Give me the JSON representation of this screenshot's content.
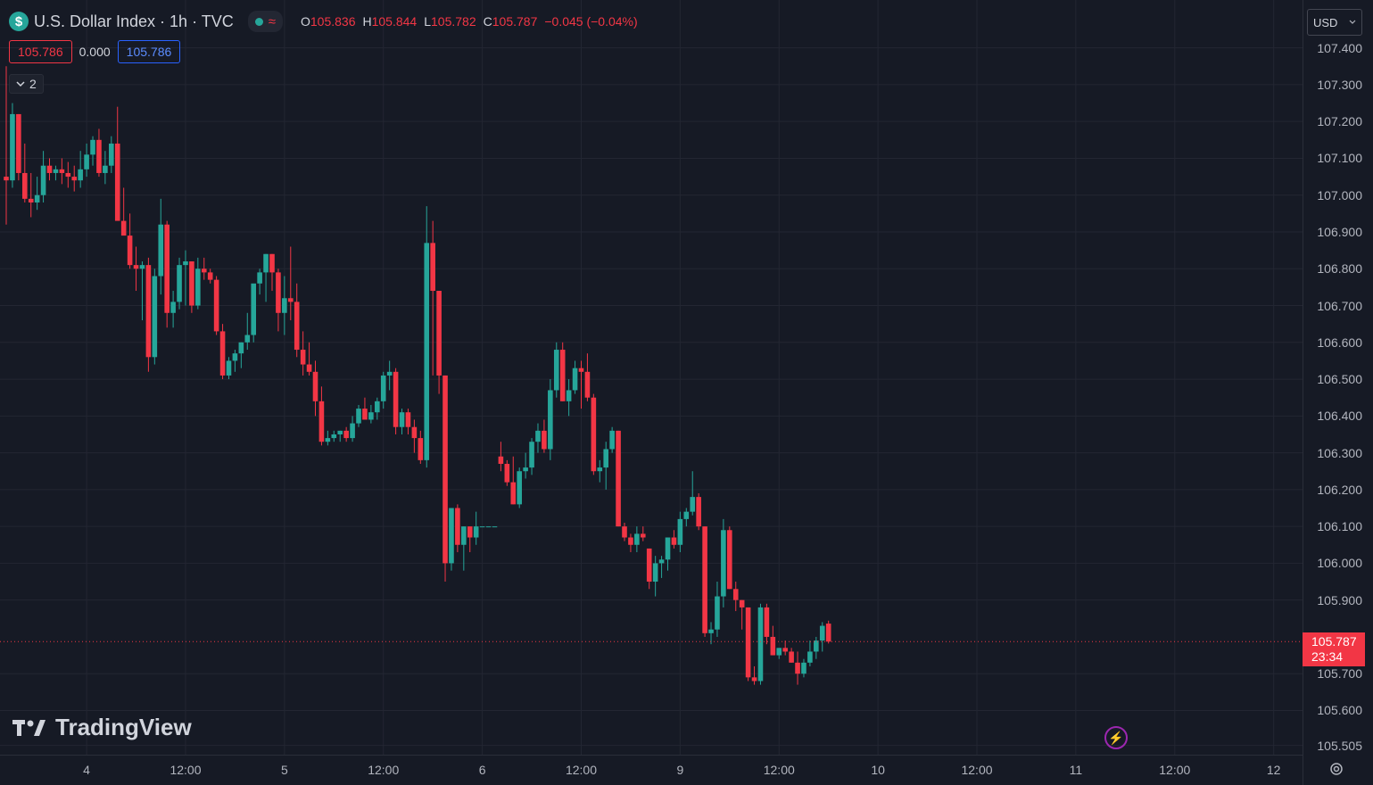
{
  "header": {
    "symbol_icon": "$",
    "title": "U.S. Dollar Index · 1h · TVC",
    "market_status_icon": "wave-icon",
    "ohlc": {
      "o_label": "O",
      "o_value": "105.836",
      "h_label": "H",
      "h_value": "105.844",
      "l_label": "L",
      "l_value": "105.782",
      "c_label": "C",
      "c_value": "105.787",
      "change": "−0.045 (−0.04%)"
    },
    "sell_price": "105.786",
    "spread": "0.000",
    "buy_price": "105.786",
    "indicators_toggle": "2"
  },
  "logo_text": "TradingView",
  "currency": "USD",
  "current_price": {
    "value": "105.787",
    "countdown": "23:34"
  },
  "colors": {
    "up": "#26a69a",
    "down": "#f23645",
    "background": "#161a25",
    "grid": "#232632"
  },
  "chart_data": {
    "type": "candlestick",
    "title": "U.S. Dollar Index · 1h · TVC",
    "ylim": [
      105.48,
      107.53
    ],
    "grid": true,
    "y_ticks": [
      "107.400",
      "107.300",
      "107.200",
      "107.100",
      "107.000",
      "106.900",
      "106.800",
      "106.700",
      "106.600",
      "106.500",
      "106.400",
      "106.300",
      "106.200",
      "106.100",
      "106.000",
      "105.900",
      "105.700",
      "105.600",
      "105.505"
    ],
    "x_ticks": [
      {
        "label": "4",
        "bar": 13
      },
      {
        "label": "12:00",
        "bar": 29
      },
      {
        "label": "5",
        "bar": 45
      },
      {
        "label": "12:00",
        "bar": 61
      },
      {
        "label": "6",
        "bar": 77
      },
      {
        "label": "12:00",
        "bar": 93
      },
      {
        "label": "9",
        "bar": 109
      },
      {
        "label": "12:00",
        "bar": 125
      },
      {
        "label": "10",
        "bar": 141
      },
      {
        "label": "12:00",
        "bar": 157
      },
      {
        "label": "11",
        "bar": 173
      },
      {
        "label": "12:00",
        "bar": 189
      },
      {
        "label": "12",
        "bar": 205
      }
    ],
    "bars": [
      [
        107.05,
        107.35,
        106.92,
        107.04
      ],
      [
        107.04,
        107.25,
        107.02,
        107.22
      ],
      [
        107.22,
        107.22,
        107.04,
        107.06
      ],
      [
        107.06,
        107.14,
        106.98,
        106.99
      ],
      [
        106.99,
        107.06,
        106.94,
        106.98
      ],
      [
        106.98,
        107.05,
        106.96,
        107.0
      ],
      [
        107.0,
        107.12,
        106.98,
        107.08
      ],
      [
        107.08,
        107.1,
        107.04,
        107.06
      ],
      [
        107.06,
        107.08,
        107.04,
        107.07
      ],
      [
        107.07,
        107.1,
        107.03,
        107.06
      ],
      [
        107.06,
        107.09,
        107.02,
        107.05
      ],
      [
        107.05,
        107.08,
        107.01,
        107.04
      ],
      [
        107.04,
        107.12,
        107.02,
        107.07
      ],
      [
        107.07,
        107.14,
        107.05,
        107.11
      ],
      [
        107.11,
        107.16,
        107.08,
        107.15
      ],
      [
        107.15,
        107.18,
        107.05,
        107.06
      ],
      [
        107.06,
        107.12,
        107.03,
        107.08
      ],
      [
        107.08,
        107.16,
        107.06,
        107.14
      ],
      [
        107.14,
        107.24,
        107.08,
        106.93
      ],
      [
        106.93,
        107.02,
        106.9,
        106.89
      ],
      [
        106.89,
        106.95,
        106.8,
        106.81
      ],
      [
        106.81,
        106.86,
        106.74,
        106.8
      ],
      [
        106.8,
        106.82,
        106.66,
        106.81
      ],
      [
        106.81,
        106.83,
        106.52,
        106.56
      ],
      [
        106.56,
        106.8,
        106.54,
        106.78
      ],
      [
        106.78,
        106.99,
        106.73,
        106.92
      ],
      [
        106.92,
        106.93,
        106.64,
        106.68
      ],
      [
        106.68,
        106.74,
        106.64,
        106.71
      ],
      [
        106.71,
        106.83,
        106.69,
        106.81
      ],
      [
        106.81,
        106.85,
        106.7,
        106.82
      ],
      [
        106.82,
        106.82,
        106.68,
        106.7
      ],
      [
        106.7,
        106.83,
        106.69,
        106.8
      ],
      [
        106.8,
        106.83,
        106.77,
        106.79
      ],
      [
        106.79,
        106.8,
        106.76,
        106.77
      ],
      [
        106.77,
        106.78,
        106.62,
        106.63
      ],
      [
        106.63,
        106.65,
        106.5,
        106.51
      ],
      [
        106.51,
        106.56,
        106.5,
        106.55
      ],
      [
        106.55,
        106.58,
        106.52,
        106.57
      ],
      [
        106.57,
        106.6,
        106.53,
        106.6
      ],
      [
        106.6,
        106.68,
        106.58,
        106.62
      ],
      [
        106.62,
        106.74,
        106.6,
        106.76
      ],
      [
        106.76,
        106.8,
        106.73,
        106.79
      ],
      [
        106.79,
        106.84,
        106.71,
        106.84
      ],
      [
        106.84,
        106.84,
        106.74,
        106.79
      ],
      [
        106.79,
        106.8,
        106.63,
        106.68
      ],
      [
        106.68,
        106.78,
        106.62,
        106.72
      ],
      [
        106.72,
        106.86,
        106.66,
        106.71
      ],
      [
        106.71,
        106.76,
        106.56,
        106.58
      ],
      [
        106.58,
        106.63,
        106.51,
        106.54
      ],
      [
        106.54,
        106.6,
        106.51,
        106.52
      ],
      [
        106.52,
        106.55,
        106.4,
        106.44
      ],
      [
        106.44,
        106.48,
        106.32,
        106.33
      ],
      [
        106.33,
        106.36,
        106.32,
        106.34
      ],
      [
        106.34,
        106.36,
        106.33,
        106.35
      ],
      [
        106.35,
        106.36,
        106.33,
        106.36
      ],
      [
        106.36,
        106.37,
        106.33,
        106.34
      ],
      [
        106.34,
        106.4,
        106.33,
        106.38
      ],
      [
        106.38,
        106.43,
        106.37,
        106.42
      ],
      [
        106.42,
        106.45,
        106.4,
        106.39
      ],
      [
        106.39,
        106.43,
        106.38,
        106.41
      ],
      [
        106.41,
        106.45,
        106.39,
        106.44
      ],
      [
        106.44,
        106.52,
        106.42,
        106.51
      ],
      [
        106.51,
        106.55,
        106.47,
        106.52
      ],
      [
        106.52,
        106.53,
        106.35,
        106.37
      ],
      [
        106.37,
        106.42,
        106.35,
        106.41
      ],
      [
        106.41,
        106.42,
        106.35,
        106.37
      ],
      [
        106.37,
        106.39,
        106.3,
        106.34
      ],
      [
        106.34,
        106.36,
        106.27,
        106.28
      ],
      [
        106.28,
        106.97,
        106.26,
        106.87
      ],
      [
        106.87,
        106.93,
        106.51,
        106.74
      ],
      [
        106.74,
        106.74,
        106.46,
        106.51
      ],
      [
        106.51,
        106.51,
        105.95,
        106.0
      ],
      [
        106.0,
        106.15,
        105.98,
        106.15
      ],
      [
        106.15,
        106.16,
        106.03,
        106.05
      ],
      [
        106.05,
        106.1,
        105.98,
        106.1
      ],
      [
        106.1,
        106.1,
        106.03,
        106.07
      ],
      [
        106.07,
        106.14,
        106.05,
        106.1
      ],
      [
        106.1,
        106.1,
        106.1,
        106.1
      ],
      [
        106.1,
        106.1,
        106.1,
        106.1
      ],
      [
        106.1,
        106.1,
        106.1,
        106.1
      ],
      [
        106.29,
        106.33,
        106.25,
        106.27
      ],
      [
        106.27,
        106.28,
        106.21,
        106.22
      ],
      [
        106.22,
        106.29,
        106.16,
        106.16
      ],
      [
        106.16,
        106.26,
        106.15,
        106.25
      ],
      [
        106.25,
        106.3,
        106.23,
        106.26
      ],
      [
        106.26,
        106.34,
        106.24,
        106.33
      ],
      [
        106.33,
        106.38,
        106.3,
        106.36
      ],
      [
        106.36,
        106.39,
        106.3,
        106.31
      ],
      [
        106.31,
        106.5,
        106.28,
        106.47
      ],
      [
        106.47,
        106.6,
        106.45,
        106.58
      ],
      [
        106.58,
        106.6,
        106.44,
        106.44
      ],
      [
        106.44,
        106.5,
        106.4,
        106.47
      ],
      [
        106.47,
        106.55,
        106.46,
        106.53
      ],
      [
        106.53,
        106.55,
        106.42,
        106.52
      ],
      [
        106.52,
        106.57,
        106.44,
        106.45
      ],
      [
        106.45,
        106.46,
        106.24,
        106.25
      ],
      [
        106.25,
        106.28,
        106.22,
        106.26
      ],
      [
        106.26,
        106.33,
        106.2,
        106.31
      ],
      [
        106.31,
        106.37,
        106.3,
        106.36
      ],
      [
        106.36,
        106.36,
        106.1,
        106.1
      ],
      [
        106.1,
        106.11,
        106.06,
        106.07
      ],
      [
        106.07,
        106.08,
        106.03,
        106.05
      ],
      [
        106.05,
        106.1,
        106.03,
        106.08
      ],
      [
        106.08,
        106.1,
        106.06,
        106.07
      ],
      [
        106.04,
        106.04,
        105.93,
        105.95
      ],
      [
        105.95,
        106.02,
        105.91,
        106.0
      ],
      [
        106.0,
        106.02,
        105.96,
        106.01
      ],
      [
        106.01,
        106.07,
        105.98,
        106.07
      ],
      [
        106.07,
        106.09,
        106.04,
        106.05
      ],
      [
        106.05,
        106.14,
        106.03,
        106.12
      ],
      [
        106.12,
        106.15,
        106.1,
        106.14
      ],
      [
        106.14,
        106.25,
        106.13,
        106.18
      ],
      [
        106.18,
        106.19,
        106.09,
        106.1
      ],
      [
        106.1,
        106.1,
        105.8,
        105.81
      ],
      [
        105.81,
        105.84,
        105.78,
        105.82
      ],
      [
        105.82,
        105.95,
        105.8,
        105.91
      ],
      [
        105.91,
        106.12,
        105.88,
        106.09
      ],
      [
        106.09,
        106.1,
        105.93,
        105.93
      ],
      [
        105.93,
        105.95,
        105.87,
        105.9
      ],
      [
        105.9,
        105.9,
        105.82,
        105.88
      ],
      [
        105.88,
        105.88,
        105.68,
        105.69
      ],
      [
        105.69,
        105.72,
        105.67,
        105.68
      ],
      [
        105.68,
        105.89,
        105.67,
        105.88
      ],
      [
        105.88,
        105.89,
        105.78,
        105.8
      ],
      [
        105.8,
        105.83,
        105.75,
        105.75
      ],
      [
        105.75,
        105.77,
        105.74,
        105.77
      ],
      [
        105.77,
        105.79,
        105.75,
        105.76
      ],
      [
        105.76,
        105.77,
        105.73,
        105.73
      ],
      [
        105.73,
        105.76,
        105.67,
        105.7
      ],
      [
        105.7,
        105.74,
        105.69,
        105.73
      ],
      [
        105.73,
        105.79,
        105.72,
        105.76
      ],
      [
        105.76,
        105.8,
        105.74,
        105.79
      ],
      [
        105.79,
        105.84,
        105.76,
        105.83
      ],
      [
        105.836,
        105.844,
        105.782,
        105.787
      ]
    ]
  }
}
